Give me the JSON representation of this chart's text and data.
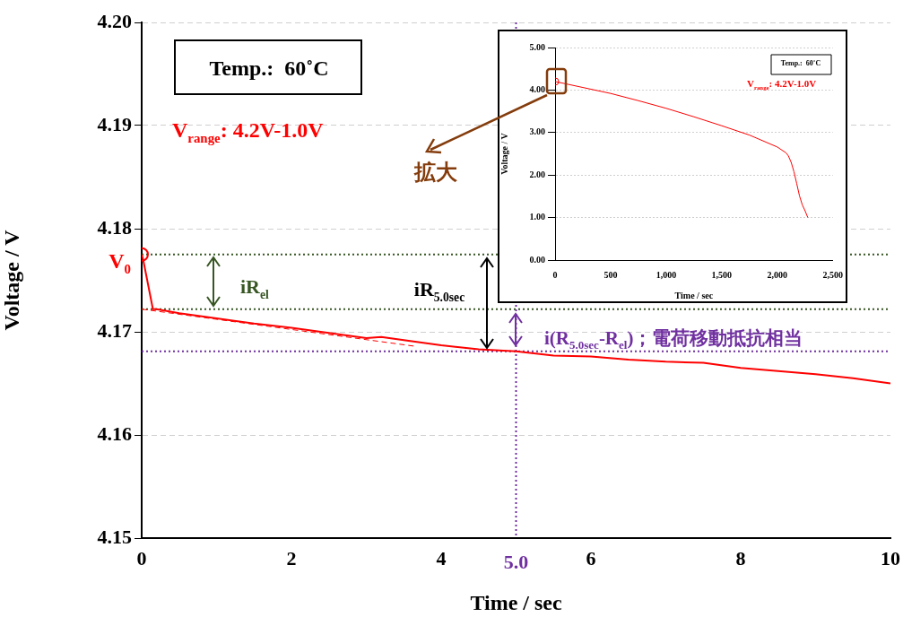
{
  "chart_data": [
    {
      "type": "line",
      "xlabel": "Time / sec",
      "ylabel": "Voltage / V",
      "xlim": [
        0,
        10
      ],
      "xticks": [
        0,
        2,
        4,
        6,
        8,
        10
      ],
      "ylim": [
        4.15,
        4.2
      ],
      "yticks": [
        {
          "value": 4.15,
          "label": "4.15"
        },
        {
          "value": 4.16,
          "label": "4.16"
        },
        {
          "value": 4.17,
          "label": "4.17"
        },
        {
          "value": 4.18,
          "label": "4.18"
        },
        {
          "value": 4.19,
          "label": "4.19"
        },
        {
          "value": 4.2,
          "label": "4.20"
        }
      ],
      "series": [
        {
          "color": "#ff0000",
          "x": [
            0,
            0.02,
            0.15,
            0.2,
            0.5,
            1,
            1.5,
            2,
            2.5,
            3,
            3.2,
            3.5,
            4,
            4.5,
            5,
            5.5,
            6,
            6.5,
            7,
            7.5,
            8,
            8.5,
            9,
            9.5,
            10
          ],
          "values": [
            4.1775,
            4.177,
            4.1722,
            4.1722,
            4.1718,
            4.1713,
            4.1708,
            4.1704,
            4.1699,
            4.1694,
            4.1695,
            4.1692,
            4.1687,
            4.1683,
            4.1681,
            4.1677,
            4.1676,
            4.1673,
            4.1671,
            4.167,
            4.1665,
            4.1662,
            4.1659,
            4.1655,
            4.165
          ]
        },
        {
          "type": "line",
          "color": "#ff0000",
          "line_style": "dashed",
          "x": [
            0,
            3.65
          ],
          "values": [
            4.1722,
            4.1686
          ]
        }
      ],
      "ref_lines": [
        {
          "axis": "y",
          "value": 4.1775,
          "color": "#375623",
          "line_style": "dotted"
        },
        {
          "axis": "y",
          "value": 4.1722,
          "color": "#375623",
          "line_style": "dotted"
        },
        {
          "axis": "y",
          "value": 4.1681,
          "color": "#7030a0",
          "line_style": "dotted"
        },
        {
          "axis": "x",
          "value": 5,
          "color": "#7030a0",
          "line_style": "dotted"
        }
      ],
      "annotations": [
        "Temp.:  60˚C",
        "V$_{range}$: 4.2V-1.0V",
        "拡大",
        {
          "text": "V$_{0}$",
          "x": 0,
          "y": 4.1775
        },
        "iR$_{el}$",
        "iR$_{5.0sec}$",
        "i(R$_{5.0sec}$-R$_{el}$)；電荷移動抵抗相当",
        {
          "text": "5.0",
          "x": 5,
          "y": 4.15
        }
      ],
      "grid": "y",
      "legend": false
    },
    {
      "type": "line",
      "xlabel": "Time / sec",
      "ylabel": "Voltage / V",
      "xlim": [
        0,
        2500
      ],
      "xticks": [
        0,
        500,
        {
          "value": 1000,
          "label": "1,000"
        },
        {
          "value": 1500,
          "label": "1,500"
        },
        {
          "value": 2000,
          "label": "2,000"
        },
        {
          "value": 2500,
          "label": "2,500"
        }
      ],
      "ylim": [
        0,
        5
      ],
      "yticks": [
        {
          "value": 0,
          "label": "0.00"
        },
        {
          "value": 1,
          "label": "1.00"
        },
        {
          "value": 2,
          "label": "2.00"
        },
        {
          "value": 3,
          "label": "3.00"
        },
        {
          "value": 4,
          "label": "4.00"
        },
        {
          "value": 5,
          "label": "5.00"
        }
      ],
      "series": [
        {
          "color": "#ff0000",
          "x": [
            0,
            250,
            500,
            750,
            1000,
            1250,
            1500,
            1750,
            2000,
            2080,
            2100,
            2125,
            2150,
            2175,
            2200,
            2225,
            2250,
            2275
          ],
          "values": [
            4.2,
            4.06,
            3.92,
            3.75,
            3.57,
            3.37,
            3.16,
            2.94,
            2.66,
            2.52,
            2.45,
            2.3,
            2.08,
            1.8,
            1.51,
            1.3,
            1.16,
            1.0
          ]
        }
      ],
      "annotations": [
        "Temp.:  60˚C",
        "V$_{range}$: 4.2V-1.0V"
      ],
      "grid": "y",
      "legend": false
    }
  ]
}
